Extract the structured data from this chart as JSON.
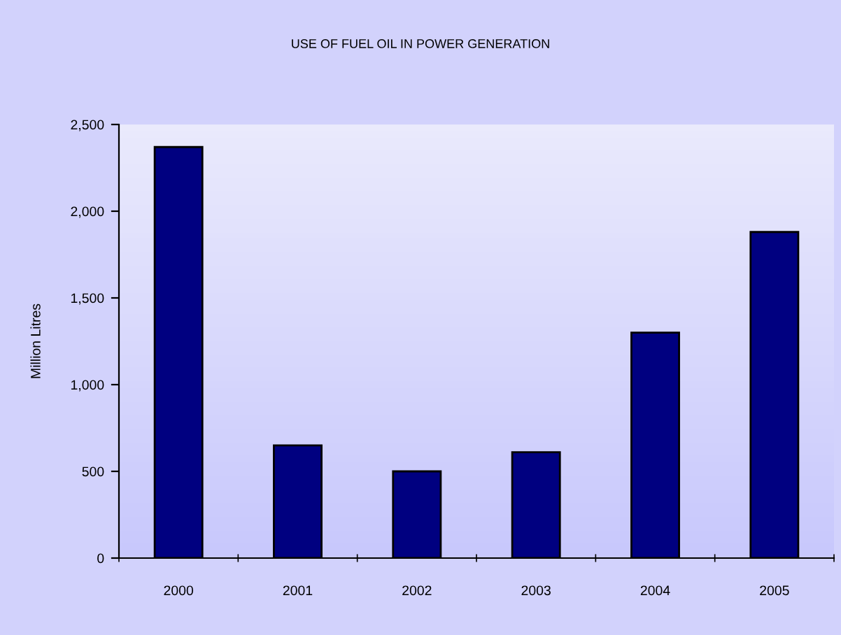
{
  "chart_data": {
    "type": "bar",
    "title": "USE OF FUEL OIL IN POWER GENERATION",
    "ylabel": "Million Litres",
    "categories": [
      "2000",
      "2001",
      "2002",
      "2003",
      "2004",
      "2005"
    ],
    "values": [
      2370,
      650,
      500,
      610,
      1300,
      1880
    ],
    "color": "#000080",
    "ylim": [
      0,
      2500
    ],
    "yticks": [
      {
        "value": 0,
        "label": "0"
      },
      {
        "value": 500,
        "label": "500"
      },
      {
        "value": 1000,
        "label": "1,000"
      },
      {
        "value": 1500,
        "label": "1,500"
      },
      {
        "value": 2000,
        "label": "2,000"
      },
      {
        "value": 2500,
        "label": "2,500"
      }
    ],
    "grid": false
  }
}
